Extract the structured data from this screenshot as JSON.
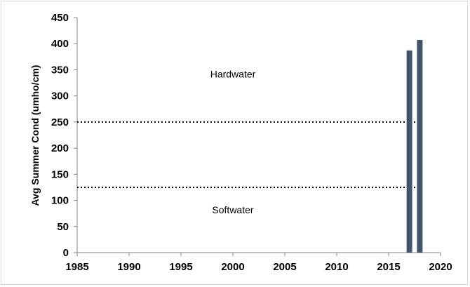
{
  "chart_data": {
    "type": "bar",
    "ylabel": "Avg Summer Cond (umho/cm)",
    "xlabel": "",
    "title": "",
    "xlim": [
      1985,
      2020
    ],
    "ylim": [
      0,
      450
    ],
    "x_ticks": [
      "1985",
      "1990",
      "1995",
      "2000",
      "2005",
      "2010",
      "2015",
      "2020"
    ],
    "y_ticks": [
      "0",
      "50",
      "100",
      "150",
      "200",
      "250",
      "300",
      "350",
      "400",
      "450"
    ],
    "x": [
      2017,
      2018
    ],
    "values": [
      387,
      407
    ],
    "bar_color": "#44546a",
    "grid": false,
    "reference_lines": [
      {
        "y": 250,
        "style": "dotted",
        "color": "#000000"
      },
      {
        "y": 125,
        "style": "dotted",
        "color": "#000000"
      }
    ],
    "annotations": [
      {
        "text": "Hardwater",
        "x": 2000,
        "y": 335
      },
      {
        "text": "Softwater",
        "x": 2000,
        "y": 75
      }
    ]
  }
}
